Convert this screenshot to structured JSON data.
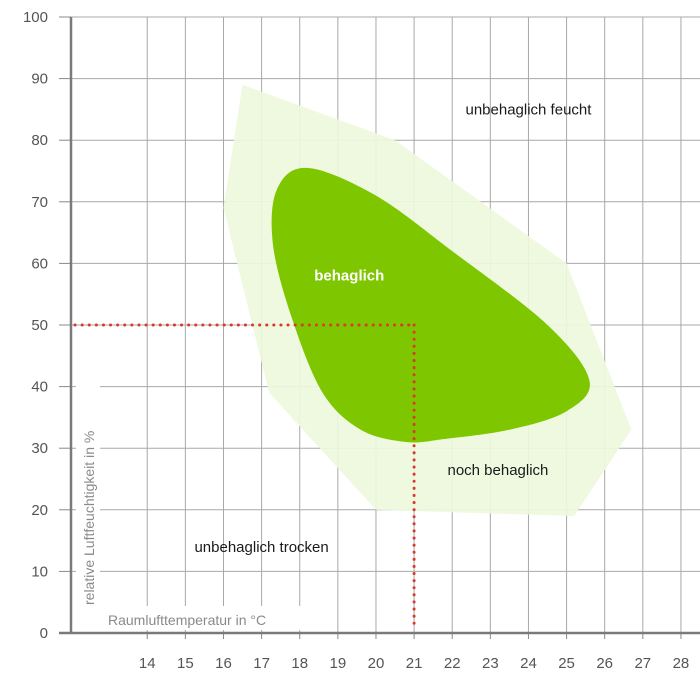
{
  "chart_data": {
    "type": "area",
    "title": "",
    "xlabel": "Raumlufttemperatur in °C",
    "ylabel": "relative Luftfeuchtigkeit in %",
    "xlim": [
      12,
      28.5
    ],
    "ylim": [
      0,
      100
    ],
    "x_ticks": [
      "14",
      "15",
      "16",
      "17",
      "18",
      "19",
      "20",
      "21",
      "22",
      "23",
      "24",
      "25",
      "26",
      "27",
      "28"
    ],
    "y_ticks": [
      "0",
      "10",
      "20",
      "30",
      "40",
      "50",
      "60",
      "70",
      "80",
      "90",
      "100"
    ],
    "grid": true,
    "regions": [
      {
        "name": "noch behaglich",
        "color": "#eef8dc",
        "points": [
          [
            16.5,
            89
          ],
          [
            20.5,
            80
          ],
          [
            25,
            60
          ],
          [
            26.7,
            33
          ],
          [
            25.2,
            19
          ],
          [
            20,
            20
          ],
          [
            17.2,
            39
          ],
          [
            16,
            69
          ]
        ]
      },
      {
        "name": "behaglich",
        "color": "#7ec600",
        "points": [
          [
            18.2,
            75.5
          ],
          [
            20,
            71
          ],
          [
            22,
            62
          ],
          [
            24.5,
            50
          ],
          [
            25.6,
            41
          ],
          [
            25,
            36
          ],
          [
            23.5,
            33
          ],
          [
            21.8,
            31.5
          ],
          [
            20.8,
            31
          ],
          [
            19.6,
            33
          ],
          [
            18.6,
            39
          ],
          [
            17.8,
            51
          ],
          [
            17.3,
            63
          ],
          [
            17.4,
            72
          ]
        ]
      }
    ],
    "labels": [
      {
        "text": "unbehaglich feucht",
        "x": 24,
        "y": 85
      },
      {
        "text": "behaglich",
        "x": 19.3,
        "y": 58
      },
      {
        "text": "noch behaglich",
        "x": 23.2,
        "y": 26.5
      },
      {
        "text": "unbehaglich trocken",
        "x": 17,
        "y": 14
      }
    ],
    "reference": {
      "x": 21,
      "y": 50,
      "color": "#d93a2b"
    }
  }
}
